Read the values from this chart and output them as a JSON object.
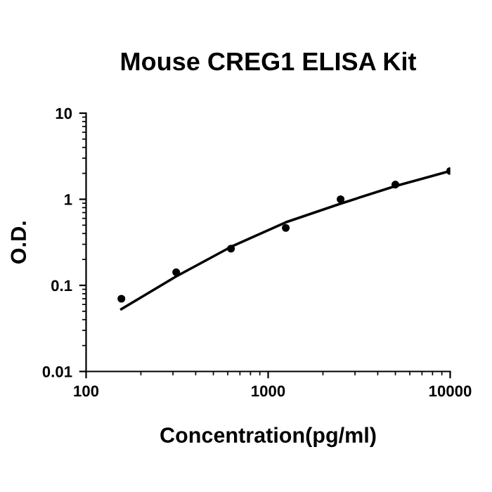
{
  "chart_data": {
    "type": "scatter",
    "title": "Mouse CREG1 ELISA Kit",
    "xlabel": "Concentration(pg/ml)",
    "ylabel": "O.D.",
    "log": "xy",
    "xlim": [
      100,
      10000
    ],
    "ylim": [
      0.01,
      10
    ],
    "xticks": [
      100,
      1000,
      10000
    ],
    "yticks": [
      0.01,
      0.1,
      1,
      10
    ],
    "grid": false,
    "legend": false,
    "series": [
      {
        "marker": "circle",
        "color": "#000000",
        "x": [
          156.25,
          312.5,
          625,
          1250,
          2500,
          5000,
          10000
        ],
        "values": [
          0.07,
          0.142,
          0.267,
          0.465,
          1.0,
          1.48,
          2.13
        ]
      },
      {
        "type": "line",
        "color": "#000000",
        "line_style": "solid",
        "x": [
          156.25,
          312.5,
          625,
          1250,
          2500,
          5000,
          10000
        ],
        "values": [
          0.053,
          0.127,
          0.28,
          0.54,
          0.89,
          1.42,
          2.13
        ]
      }
    ]
  }
}
